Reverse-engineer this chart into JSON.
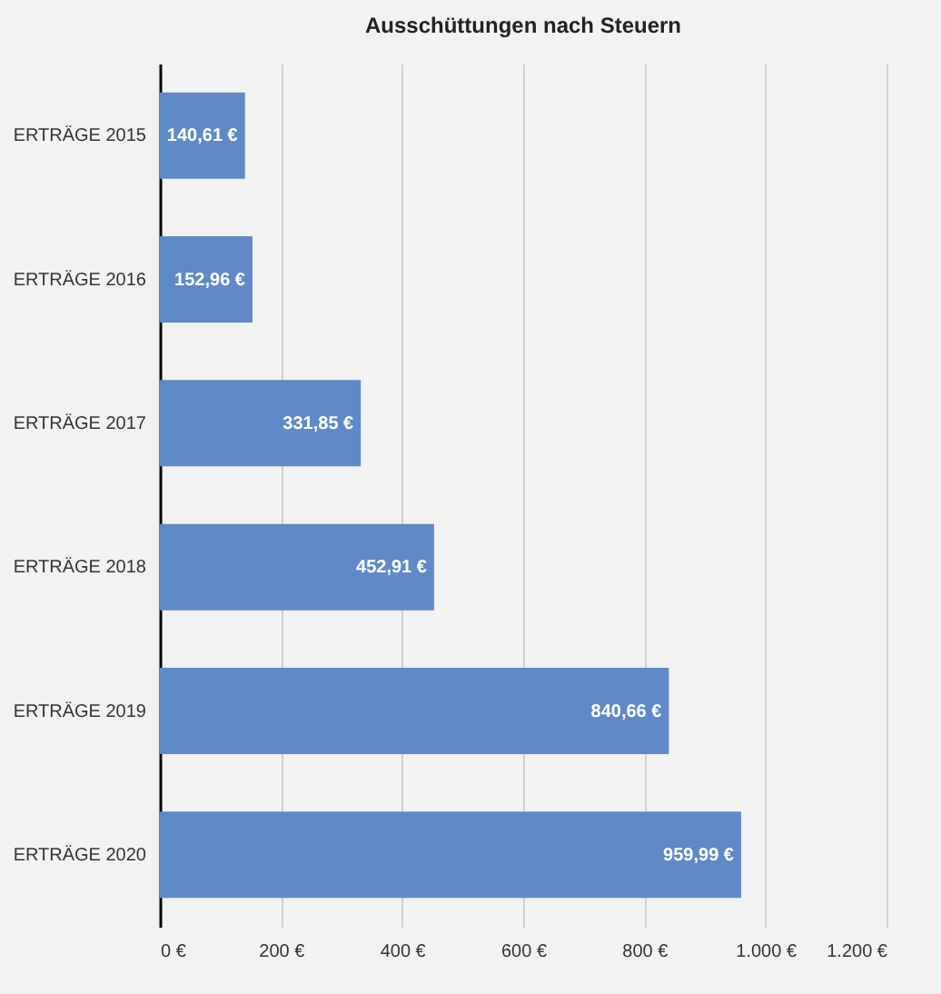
{
  "chart_data": {
    "type": "bar",
    "orientation": "horizontal",
    "title": "Ausschüttungen nach Steuern",
    "categories": [
      "ERTRÄGE 2015",
      "ERTRÄGE 2016",
      "ERTRÄGE 2017",
      "ERTRÄGE 2018",
      "ERTRÄGE 2019",
      "ERTRÄGE 2020"
    ],
    "values": [
      140.61,
      152.96,
      331.85,
      452.91,
      840.66,
      959.99
    ],
    "value_labels": [
      "140,61 €",
      "152,96 €",
      "331,85 €",
      "452,91 €",
      "840,66 €",
      "959,99 €"
    ],
    "color": "#5f8ac7",
    "xlim": [
      0,
      1200
    ],
    "xticks": [
      {
        "value": 0,
        "label": "0 €"
      },
      {
        "value": 200,
        "label": "200 €"
      },
      {
        "value": 400,
        "label": "400 €"
      },
      {
        "value": 600,
        "label": "600 €"
      },
      {
        "value": 800,
        "label": "800 €"
      },
      {
        "value": 1000,
        "label": "1.000 €"
      },
      {
        "value": 1200,
        "label": "1.200 €"
      }
    ],
    "grid": "x"
  }
}
